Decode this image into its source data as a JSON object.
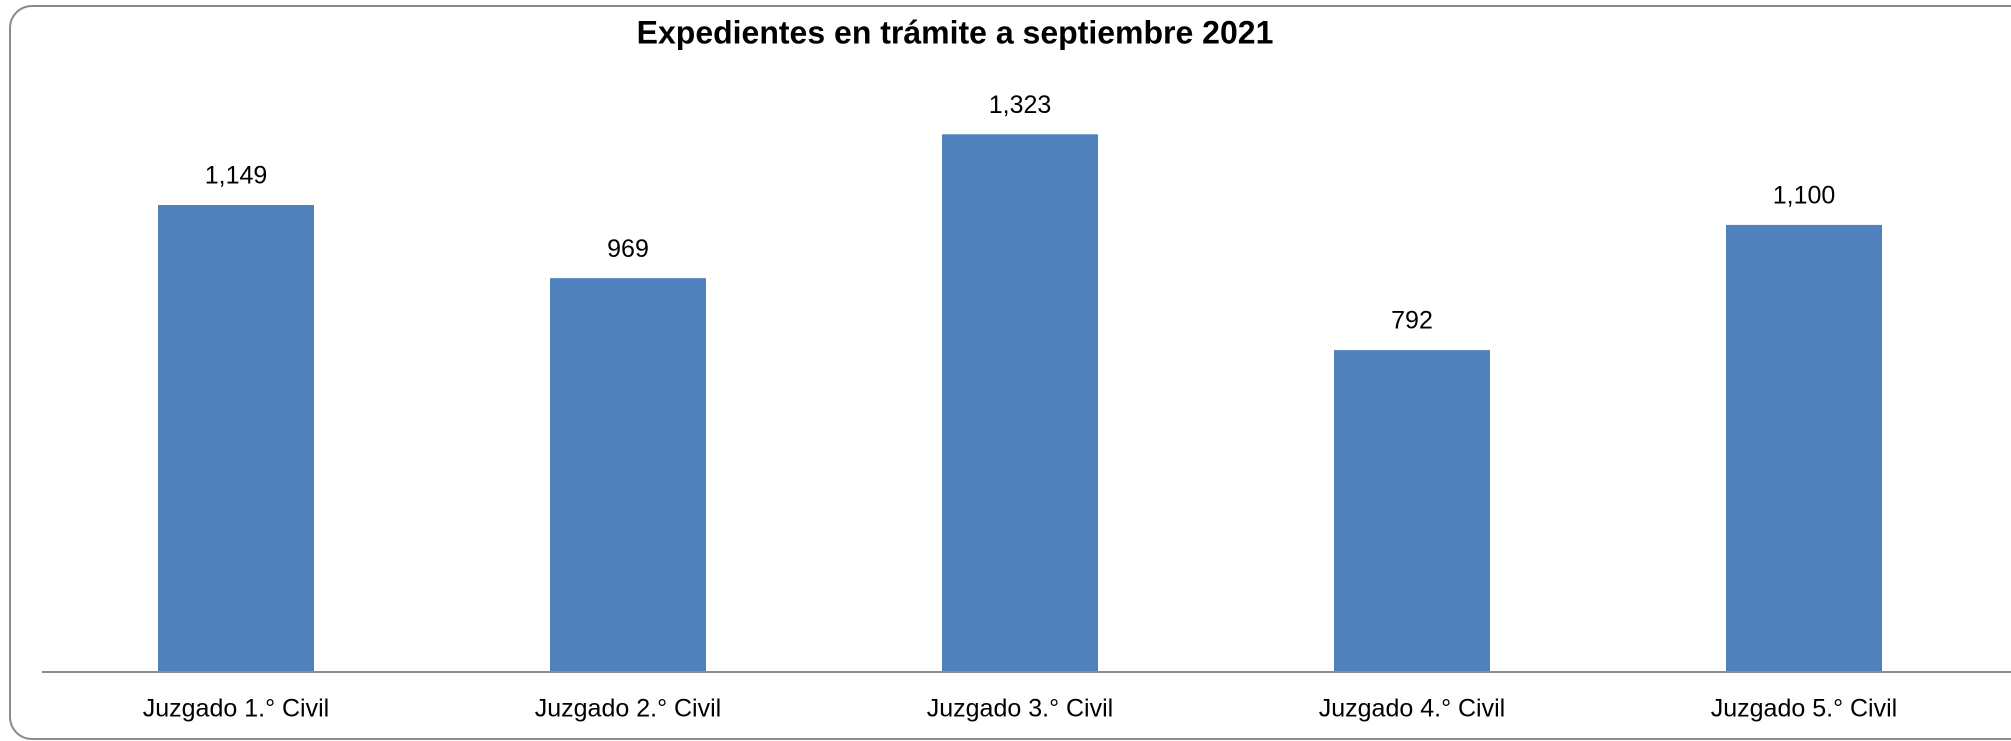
{
  "chart_data": {
    "type": "bar",
    "title": "Expedientes en trámite a septiembre 2021",
    "categories": [
      "Juzgado 1.° Civil",
      "Juzgado 2.° Civil",
      "Juzgado 3.° Civil",
      "Juzgado 4.° Civil",
      "Juzgado 5.° Civil"
    ],
    "values": [
      1149,
      969,
      1323,
      792,
      1100
    ],
    "value_labels": [
      "1,149",
      "969",
      "1,323",
      "792",
      "1,100"
    ],
    "color": "#4f81bd",
    "ylim": [
      0,
      1400
    ]
  }
}
